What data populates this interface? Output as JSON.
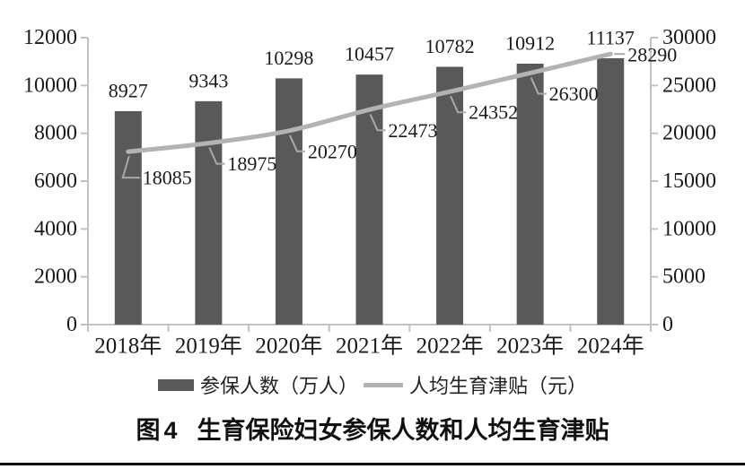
{
  "chart_data": {
    "type": "bar+line combo",
    "categories": [
      "2018年",
      "2019年",
      "2020年",
      "2021年",
      "2022年",
      "2023年",
      "2024年"
    ],
    "series": [
      {
        "name": "参保人数（万人）",
        "type": "bar",
        "axis": "left",
        "values": [
          8927,
          9343,
          10298,
          10457,
          10782,
          10912,
          11137
        ]
      },
      {
        "name": "人均生育津贴（元）",
        "type": "line",
        "axis": "right",
        "values": [
          18085,
          18975,
          20270,
          22473,
          24352,
          26300,
          28290
        ]
      }
    ],
    "left_axis": {
      "min": 0,
      "max": 12000,
      "step": 2000,
      "tick_labels": [
        "0",
        "2000",
        "4000",
        "6000",
        "8000",
        "10000",
        "12000"
      ]
    },
    "right_axis": {
      "min": 0,
      "max": 30000,
      "step": 5000,
      "tick_labels": [
        "0",
        "5000",
        "10000",
        "15000",
        "20000",
        "25000",
        "30000"
      ]
    },
    "grid": false,
    "legend_position": "bottom",
    "title": "图4 生育保险妇女参保人数和人均生育津贴"
  },
  "legend": {
    "bar_label": "参保人数（万人）",
    "line_label": "人均生育津贴（元）"
  },
  "caption": {
    "prefix": "图4",
    "title": "生育保险妇女参保人数和人均生育津贴"
  },
  "colors": {
    "bar": "#595959",
    "line": "#b3b3b3",
    "leader": "#a9a9a9",
    "axis": "#c2c2c2",
    "text": "#1a1a1a",
    "rule": "#000000"
  }
}
